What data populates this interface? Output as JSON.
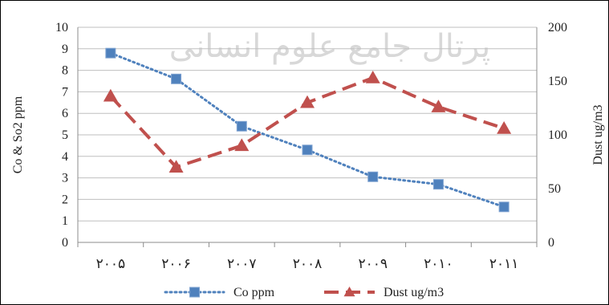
{
  "watermark": "پرتال جامع علوم انسانی",
  "chart_data": {
    "type": "line",
    "title": "",
    "categories": [
      "۲۰۰۵",
      "۲۰۰۶",
      "۲۰۰۷",
      "۲۰۰۸",
      "۲۰۰۹",
      "۲۰۱۰",
      "۲۰۱۱"
    ],
    "ylabel_left": "Co & So2  ppm",
    "ylabel_right": "Dust ug/m3",
    "ylim_left": [
      0,
      10
    ],
    "ylim_right": [
      0,
      200
    ],
    "yticks_left": [
      "0",
      "1",
      "2",
      "3",
      "4",
      "5",
      "6",
      "7",
      "8",
      "9",
      "10"
    ],
    "yticks_right": [
      "0",
      "50",
      "100",
      "150",
      "200"
    ],
    "grid": "horizontal",
    "legend_position": "bottom",
    "series": [
      {
        "name": "Co ppm",
        "axis": "left",
        "color": "#4f81bd",
        "marker": "square",
        "line": "dotted",
        "values": [
          8.8,
          7.6,
          5.4,
          4.3,
          3.05,
          2.7,
          1.65
        ]
      },
      {
        "name": "Dust ug/m3",
        "axis": "right",
        "color": "#c0504d",
        "marker": "triangle",
        "line": "dashed",
        "values": [
          136,
          70,
          90,
          130,
          153,
          126,
          106
        ]
      }
    ]
  }
}
